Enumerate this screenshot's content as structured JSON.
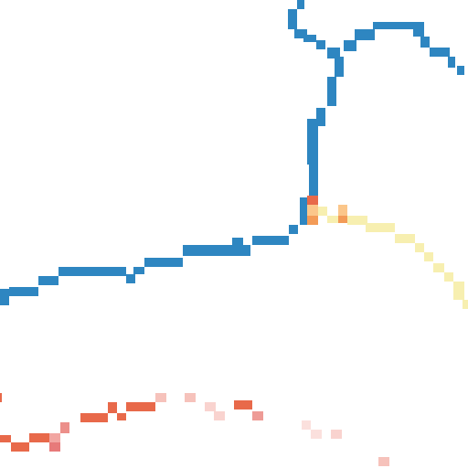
{
  "map": {
    "background_color": "#ffffff",
    "layers": [
      {
        "id": "route-blue",
        "feature": "line",
        "color": "#2e86c1"
      },
      {
        "id": "route-yellow",
        "feature": "line",
        "color": "#f7efb0"
      },
      {
        "id": "route-orange-junction",
        "feature": "marker",
        "colors": [
          "#e8694a",
          "#fbc68a",
          "#f39b57"
        ]
      },
      {
        "id": "route-red-orange",
        "feature": "line",
        "color": "#e8694a"
      },
      {
        "id": "route-pink",
        "feature": "line",
        "color": "#f2b8b3"
      }
    ]
  }
}
